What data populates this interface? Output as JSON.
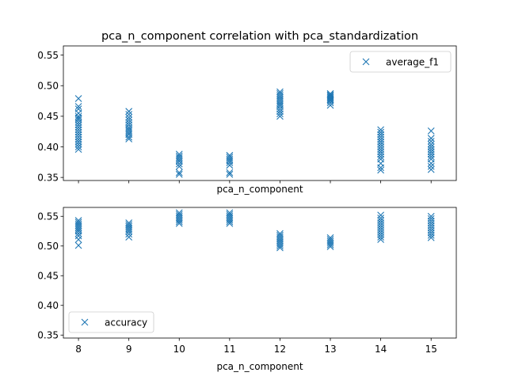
{
  "chart_data": [
    {
      "type": "scatter",
      "title": "pca_n_component correlation with pca_standardization",
      "xlabel": "pca_n_component",
      "ylabel": "",
      "x_ticks": [
        8,
        9,
        10,
        11,
        12,
        13,
        14,
        15
      ],
      "show_x_tick_labels": false,
      "xlim": [
        7.7,
        15.5
      ],
      "ylim": [
        0.345,
        0.565
      ],
      "y_ticks": [
        0.35,
        0.4,
        0.45,
        0.5,
        0.55
      ],
      "y_tick_labels": [
        "0.35",
        "0.40",
        "0.45",
        "0.50",
        "0.55"
      ],
      "legend": "top-right",
      "grid": false,
      "marker": "x",
      "series": [
        {
          "name": "average_f1",
          "color": "#1f77b4",
          "points": [
            [
              8,
              0.479
            ],
            [
              8,
              0.466
            ],
            [
              8,
              0.462
            ],
            [
              8,
              0.455
            ],
            [
              8,
              0.45
            ],
            [
              8,
              0.447
            ],
            [
              8,
              0.444
            ],
            [
              8,
              0.44
            ],
            [
              8,
              0.436
            ],
            [
              8,
              0.432
            ],
            [
              8,
              0.428
            ],
            [
              8,
              0.424
            ],
            [
              8,
              0.42
            ],
            [
              8,
              0.416
            ],
            [
              8,
              0.412
            ],
            [
              8,
              0.408
            ],
            [
              8,
              0.404
            ],
            [
              8,
              0.4
            ],
            [
              8,
              0.396
            ],
            [
              9,
              0.458
            ],
            [
              9,
              0.453
            ],
            [
              9,
              0.448
            ],
            [
              9,
              0.444
            ],
            [
              9,
              0.44
            ],
            [
              9,
              0.436
            ],
            [
              9,
              0.432
            ],
            [
              9,
              0.429
            ],
            [
              9,
              0.426
            ],
            [
              9,
              0.423
            ],
            [
              9,
              0.42
            ],
            [
              9,
              0.416
            ],
            [
              9,
              0.413
            ],
            [
              10,
              0.388
            ],
            [
              10,
              0.385
            ],
            [
              10,
              0.382
            ],
            [
              10,
              0.379
            ],
            [
              10,
              0.376
            ],
            [
              10,
              0.372
            ],
            [
              10,
              0.368
            ],
            [
              10,
              0.358
            ],
            [
              10,
              0.355
            ],
            [
              11,
              0.386
            ],
            [
              11,
              0.383
            ],
            [
              11,
              0.38
            ],
            [
              11,
              0.377
            ],
            [
              11,
              0.374
            ],
            [
              11,
              0.37
            ],
            [
              11,
              0.358
            ],
            [
              11,
              0.355
            ],
            [
              12,
              0.49
            ],
            [
              12,
              0.487
            ],
            [
              12,
              0.484
            ],
            [
              12,
              0.481
            ],
            [
              12,
              0.478
            ],
            [
              12,
              0.475
            ],
            [
              12,
              0.472
            ],
            [
              12,
              0.469
            ],
            [
              12,
              0.466
            ],
            [
              12,
              0.462
            ],
            [
              12,
              0.458
            ],
            [
              12,
              0.454
            ],
            [
              12,
              0.45
            ],
            [
              13,
              0.487
            ],
            [
              13,
              0.485
            ],
            [
              13,
              0.483
            ],
            [
              13,
              0.481
            ],
            [
              13,
              0.479
            ],
            [
              13,
              0.477
            ],
            [
              13,
              0.475
            ],
            [
              13,
              0.472
            ],
            [
              13,
              0.468
            ],
            [
              14,
              0.428
            ],
            [
              14,
              0.424
            ],
            [
              14,
              0.42
            ],
            [
              14,
              0.416
            ],
            [
              14,
              0.412
            ],
            [
              14,
              0.408
            ],
            [
              14,
              0.404
            ],
            [
              14,
              0.4
            ],
            [
              14,
              0.396
            ],
            [
              14,
              0.392
            ],
            [
              14,
              0.388
            ],
            [
              14,
              0.384
            ],
            [
              14,
              0.38
            ],
            [
              14,
              0.373
            ],
            [
              14,
              0.366
            ],
            [
              14,
              0.362
            ],
            [
              15,
              0.426
            ],
            [
              15,
              0.414
            ],
            [
              15,
              0.409
            ],
            [
              15,
              0.404
            ],
            [
              15,
              0.4
            ],
            [
              15,
              0.396
            ],
            [
              15,
              0.392
            ],
            [
              15,
              0.388
            ],
            [
              15,
              0.384
            ],
            [
              15,
              0.38
            ],
            [
              15,
              0.373
            ],
            [
              15,
              0.368
            ],
            [
              15,
              0.363
            ]
          ]
        }
      ]
    },
    {
      "type": "scatter",
      "title": "",
      "xlabel": "pca_n_component",
      "ylabel": "",
      "x_ticks": [
        8,
        9,
        10,
        11,
        12,
        13,
        14,
        15
      ],
      "show_x_tick_labels": true,
      "xlim": [
        7.7,
        15.5
      ],
      "ylim": [
        0.345,
        0.565
      ],
      "y_ticks": [
        0.35,
        0.4,
        0.45,
        0.5,
        0.55
      ],
      "y_tick_labels": [
        "0.35",
        "0.40",
        "0.45",
        "0.50",
        "0.55"
      ],
      "legend": "bottom-left",
      "grid": false,
      "marker": "x",
      "series": [
        {
          "name": "accuracy",
          "color": "#1f77b4",
          "points": [
            [
              8,
              0.543
            ],
            [
              8,
              0.54
            ],
            [
              8,
              0.537
            ],
            [
              8,
              0.534
            ],
            [
              8,
              0.531
            ],
            [
              8,
              0.528
            ],
            [
              8,
              0.525
            ],
            [
              8,
              0.521
            ],
            [
              8,
              0.517
            ],
            [
              8,
              0.511
            ],
            [
              8,
              0.501
            ],
            [
              9,
              0.539
            ],
            [
              9,
              0.536
            ],
            [
              9,
              0.533
            ],
            [
              9,
              0.53
            ],
            [
              9,
              0.527
            ],
            [
              9,
              0.524
            ],
            [
              9,
              0.52
            ],
            [
              9,
              0.515
            ],
            [
              10,
              0.556
            ],
            [
              10,
              0.553
            ],
            [
              10,
              0.55
            ],
            [
              10,
              0.547
            ],
            [
              10,
              0.544
            ],
            [
              10,
              0.541
            ],
            [
              10,
              0.538
            ],
            [
              11,
              0.556
            ],
            [
              11,
              0.553
            ],
            [
              11,
              0.55
            ],
            [
              11,
              0.547
            ],
            [
              11,
              0.544
            ],
            [
              11,
              0.541
            ],
            [
              11,
              0.538
            ],
            [
              12,
              0.521
            ],
            [
              12,
              0.518
            ],
            [
              12,
              0.515
            ],
            [
              12,
              0.512
            ],
            [
              12,
              0.509
            ],
            [
              12,
              0.506
            ],
            [
              12,
              0.503
            ],
            [
              12,
              0.5
            ],
            [
              12,
              0.497
            ],
            [
              13,
              0.514
            ],
            [
              13,
              0.511
            ],
            [
              13,
              0.508
            ],
            [
              13,
              0.505
            ],
            [
              13,
              0.502
            ],
            [
              13,
              0.499
            ],
            [
              14,
              0.552
            ],
            [
              14,
              0.547
            ],
            [
              14,
              0.543
            ],
            [
              14,
              0.539
            ],
            [
              14,
              0.535
            ],
            [
              14,
              0.531
            ],
            [
              14,
              0.527
            ],
            [
              14,
              0.523
            ],
            [
              14,
              0.519
            ],
            [
              14,
              0.515
            ],
            [
              14,
              0.511
            ],
            [
              15,
              0.55
            ],
            [
              15,
              0.546
            ],
            [
              15,
              0.542
            ],
            [
              15,
              0.538
            ],
            [
              15,
              0.534
            ],
            [
              15,
              0.53
            ],
            [
              15,
              0.526
            ],
            [
              15,
              0.522
            ],
            [
              15,
              0.518
            ],
            [
              15,
              0.514
            ]
          ]
        }
      ]
    }
  ]
}
